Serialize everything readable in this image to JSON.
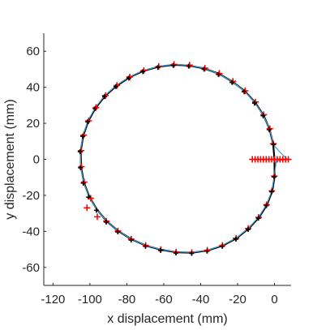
{
  "chart_data": {
    "type": "scatter",
    "xlabel": "x displacement (mm)",
    "ylabel": "y displacement (mm)",
    "xlim": [
      -125,
      9
    ],
    "ylim": [
      -70,
      70
    ],
    "x_ticks": [
      -120,
      -100,
      -80,
      -60,
      -40,
      -20,
      0
    ],
    "y_ticks": [
      -60,
      -40,
      -20,
      0,
      20,
      40,
      60
    ],
    "x_tick_labels": [
      "-120",
      "-100",
      "-80",
      "-60",
      "-40",
      "-20",
      "0"
    ],
    "y_tick_labels": [
      "-60",
      "-40",
      "-20",
      "0",
      "20",
      "40",
      "60"
    ],
    "grid": false,
    "circle": {
      "center_x": -52.5,
      "center_y": 0,
      "radius": 52.5
    },
    "series": [
      {
        "kind": "line",
        "color": "#000000",
        "description_style": "reference path",
        "points": [
          [
            0.0,
            0.0
          ],
          [
            -0.7,
            8.6
          ],
          [
            -2.7,
            16.8
          ],
          [
            -6.0,
            24.6
          ],
          [
            -10.5,
            31.6
          ],
          [
            -16.1,
            37.9
          ],
          [
            -22.7,
            43.1
          ],
          [
            -30.1,
            47.5
          ],
          [
            -37.9,
            50.4
          ],
          [
            -46.2,
            52.1
          ],
          [
            -54.6,
            52.5
          ],
          [
            -62.9,
            51.4
          ],
          [
            -71.0,
            49.1
          ],
          [
            -78.6,
            45.5
          ],
          [
            -85.6,
            40.8
          ],
          [
            -91.8,
            35.2
          ],
          [
            -96.9,
            28.6
          ],
          [
            -100.9,
            21.2
          ],
          [
            -103.6,
            13.2
          ],
          [
            -105.0,
            4.6
          ],
          [
            -104.8,
            -4.3
          ],
          [
            -103.3,
            -12.8
          ],
          [
            -100.4,
            -20.6
          ],
          [
            -96.2,
            -27.9
          ],
          [
            -90.9,
            -34.4
          ],
          [
            -84.6,
            -39.9
          ],
          [
            -77.4,
            -44.4
          ],
          [
            -69.6,
            -47.9
          ],
          [
            -61.4,
            -50.2
          ],
          [
            -53.1,
            -51.6
          ],
          [
            -44.6,
            -51.8
          ],
          [
            -36.2,
            -50.6
          ],
          [
            -28.0,
            -47.9
          ],
          [
            -20.6,
            -43.9
          ],
          [
            -14.0,
            -38.5
          ],
          [
            -8.4,
            -32.3
          ],
          [
            -4.1,
            -25.3
          ],
          [
            -1.2,
            -17.6
          ],
          [
            0.1,
            -9.4
          ],
          [
            0.0,
            0.0
          ]
        ]
      },
      {
        "kind": "line",
        "color": "#4a9fd4",
        "description_style": "measured path",
        "points": [
          [
            7.0,
            0.0
          ],
          [
            3.0,
            4.0
          ],
          [
            -0.5,
            8.0
          ],
          [
            -2.6,
            16.6
          ],
          [
            -6.2,
            24.8
          ],
          [
            -10.8,
            31.8
          ],
          [
            -16.4,
            38.0
          ],
          [
            -22.9,
            43.2
          ],
          [
            -30.3,
            47.4
          ],
          [
            -38.1,
            50.6
          ],
          [
            -46.4,
            52.3
          ],
          [
            -54.8,
            52.7
          ],
          [
            -63.1,
            51.6
          ],
          [
            -71.2,
            49.3
          ],
          [
            -78.8,
            45.7
          ],
          [
            -85.8,
            41.0
          ],
          [
            -92.0,
            35.4
          ],
          [
            -97.1,
            28.8
          ],
          [
            -101.1,
            21.4
          ],
          [
            -103.8,
            13.4
          ],
          [
            -105.2,
            4.8
          ],
          [
            -105.0,
            -4.1
          ],
          [
            -103.5,
            -12.6
          ],
          [
            -100.6,
            -20.4
          ],
          [
            -96.4,
            -27.7
          ],
          [
            -91.1,
            -34.2
          ],
          [
            -84.8,
            -39.7
          ],
          [
            -77.6,
            -44.2
          ],
          [
            -69.8,
            -47.7
          ],
          [
            -61.6,
            -50.0
          ],
          [
            -53.3,
            -51.4
          ],
          [
            -44.8,
            -51.6
          ],
          [
            -36.4,
            -50.4
          ],
          [
            -28.2,
            -47.7
          ],
          [
            -20.8,
            -43.7
          ],
          [
            -14.2,
            -38.3
          ],
          [
            -8.6,
            -32.1
          ],
          [
            -4.3,
            -25.1
          ],
          [
            -1.4,
            -17.4
          ],
          [
            -0.1,
            -9.2
          ],
          [
            1.0,
            -1.0
          ],
          [
            7.0,
            0.0
          ]
        ]
      },
      {
        "kind": "markers",
        "marker": "plus",
        "color": "#ff0000",
        "points": [
          [
            -0.6,
            8.7
          ],
          [
            -2.5,
            17.0
          ],
          [
            -5.8,
            24.8
          ],
          [
            -10.3,
            31.8
          ],
          [
            -15.9,
            38.1
          ],
          [
            -22.5,
            43.3
          ],
          [
            -29.9,
            47.7
          ],
          [
            -37.7,
            50.6
          ],
          [
            -46.0,
            52.3
          ],
          [
            -54.4,
            52.7
          ],
          [
            -62.7,
            51.6
          ],
          [
            -70.8,
            49.3
          ],
          [
            -78.4,
            45.7
          ],
          [
            -85.4,
            41.0
          ],
          [
            -91.6,
            35.4
          ],
          [
            -96.7,
            28.8
          ],
          [
            -100.7,
            21.4
          ],
          [
            -103.4,
            13.4
          ],
          [
            -104.8,
            4.8
          ],
          [
            -104.6,
            -4.1
          ],
          [
            -103.1,
            -12.6
          ],
          [
            -99.6,
            -21.6
          ],
          [
            -101.6,
            -26.9
          ],
          [
            -96.0,
            -31.9
          ],
          [
            -91.1,
            -34.3
          ],
          [
            -84.8,
            -39.8
          ],
          [
            -77.6,
            -44.3
          ],
          [
            -69.8,
            -47.8
          ],
          [
            -61.6,
            -50.1
          ],
          [
            -53.3,
            -51.5
          ],
          [
            -44.8,
            -51.7
          ],
          [
            -36.4,
            -50.5
          ],
          [
            -28.2,
            -47.8
          ],
          [
            -20.8,
            -43.8
          ],
          [
            -14.2,
            -38.4
          ],
          [
            -8.6,
            -32.2
          ],
          [
            -4.3,
            -25.2
          ],
          [
            -1.4,
            -17.5
          ],
          [
            -0.1,
            -9.3
          ],
          [
            -12.0,
            0.0
          ],
          [
            -10.5,
            0.0
          ],
          [
            -9.0,
            0.0
          ],
          [
            -7.5,
            0.0
          ],
          [
            -6.0,
            0.0
          ],
          [
            -4.5,
            0.0
          ],
          [
            -3.0,
            0.0
          ],
          [
            -1.5,
            0.0
          ],
          [
            0.0,
            0.0
          ],
          [
            1.5,
            0.0
          ],
          [
            3.0,
            0.0
          ],
          [
            4.5,
            0.0
          ],
          [
            6.0,
            0.0
          ],
          [
            7.5,
            0.0
          ]
        ]
      },
      {
        "kind": "markers",
        "marker": "plus",
        "color": "#000000",
        "points": [
          [
            -0.5,
            8.2
          ],
          [
            -2.9,
            16.5
          ],
          [
            -6.2,
            24.2
          ],
          [
            -10.8,
            31.2
          ],
          [
            -16.4,
            37.5
          ],
          [
            -23.0,
            42.7
          ],
          [
            -30.4,
            47.1
          ],
          [
            -38.2,
            50.0
          ],
          [
            -46.5,
            51.7
          ],
          [
            -54.9,
            52.1
          ],
          [
            -63.2,
            51.0
          ],
          [
            -71.3,
            48.7
          ],
          [
            -78.9,
            45.1
          ],
          [
            -85.9,
            40.4
          ],
          [
            -92.1,
            34.8
          ],
          [
            -97.2,
            28.2
          ],
          [
            -101.2,
            20.8
          ],
          [
            -103.9,
            12.8
          ],
          [
            -105.3,
            4.2
          ],
          [
            -105.1,
            -4.7
          ],
          [
            -103.6,
            -13.2
          ],
          [
            -100.7,
            -21.0
          ],
          [
            -96.5,
            -28.3
          ],
          [
            -91.2,
            -34.8
          ],
          [
            -84.9,
            -40.3
          ],
          [
            -77.7,
            -44.8
          ],
          [
            -69.9,
            -48.3
          ],
          [
            -61.7,
            -50.6
          ],
          [
            -53.4,
            -52.0
          ],
          [
            -44.9,
            -52.2
          ],
          [
            -36.5,
            -51.0
          ],
          [
            -28.3,
            -48.3
          ],
          [
            -20.9,
            -44.3
          ],
          [
            -14.3,
            -38.9
          ],
          [
            -8.7,
            -32.7
          ],
          [
            -4.4,
            -25.7
          ],
          [
            -1.5,
            -18.0
          ],
          [
            -0.2,
            -9.8
          ]
        ]
      }
    ]
  }
}
